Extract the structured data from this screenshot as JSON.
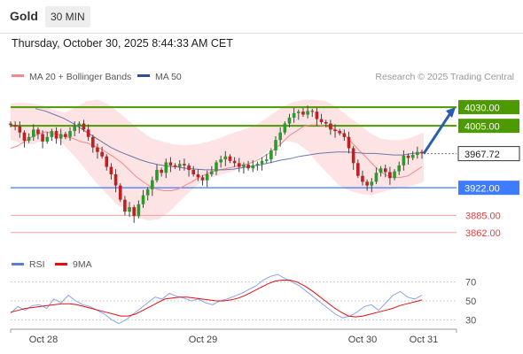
{
  "header": {
    "title": "Gold",
    "timeframe": "30 MIN"
  },
  "timestamp": "Thursday, October 30, 2025 8:44:33 AM CET",
  "legend": {
    "ma20": {
      "label": "MA 20 + Bollinger Bands",
      "color": "#f08a8a"
    },
    "ma50": {
      "label": "MA 50",
      "color": "#2f4f8f"
    },
    "credit": "Research © 2025 Trading Central"
  },
  "rsi_legend": {
    "rsi": {
      "label": "RSI",
      "color": "#5b7fd6"
    },
    "ma9": {
      "label": "9MA",
      "color": "#e01010"
    }
  },
  "chart_data": [
    {
      "type": "candlestick",
      "title": "Gold",
      "ylim": [
        3838,
        4055
      ],
      "x_ticks": [
        "Oct 28",
        "Oct 29",
        "Oct 30",
        "Oct 31"
      ],
      "price_levels": [
        {
          "value": 4030.0,
          "label": "4030.00",
          "kind": "resistance",
          "color": "#4c9a00"
        },
        {
          "value": 4005.0,
          "label": "4005.00",
          "kind": "resistance",
          "color": "#4c9a00"
        },
        {
          "value": 3967.72,
          "label": "3967.72",
          "kind": "current",
          "color": "#333333"
        },
        {
          "value": 3922.0,
          "label": "3922.00",
          "kind": "pivot",
          "color": "#3d7bff"
        },
        {
          "value": 3885.0,
          "label": "3885.00",
          "kind": "support",
          "color": "#f2a0a0"
        },
        {
          "value": 3862.0,
          "label": "3862.00",
          "kind": "support",
          "color": "#f2a0a0"
        }
      ],
      "candles_close": [
        4006,
        4004,
        3996,
        3985,
        3990,
        4000,
        3994,
        3984,
        3990,
        3998,
        3988,
        3994,
        3990,
        3998,
        4004,
        4008,
        4000,
        3990,
        3976,
        3970,
        3964,
        3950,
        3940,
        3925,
        3906,
        3890,
        3896,
        3884,
        3900,
        3912,
        3920,
        3932,
        3946,
        3942,
        3956,
        3952,
        3950,
        3954,
        3952,
        3946,
        3940,
        3936,
        3932,
        3940,
        3944,
        3956,
        3960,
        3964,
        3958,
        3955,
        3950,
        3953,
        3948,
        3952,
        3954,
        3958,
        3960,
        3972,
        3986,
        3996,
        4008,
        4016,
        4022,
        4024,
        4020,
        4025,
        4024,
        4014,
        4010,
        4008,
        4000,
        3998,
        3995,
        3990,
        3975,
        3955,
        3938,
        3930,
        3925,
        3930,
        3942,
        3948,
        3943,
        3935,
        3944,
        3952,
        3965,
        3962,
        3966,
        3970,
        3968
      ],
      "ma20": [
        3975,
        3978,
        3984,
        3990,
        3994,
        3997,
        3995,
        3993,
        3990,
        3988,
        3984,
        3982,
        3978,
        3974,
        3968,
        3962,
        3955,
        3946,
        3937,
        3930,
        3924,
        3920,
        3918,
        3918,
        3920,
        3925,
        3930,
        3936,
        3940,
        3944,
        3946,
        3948,
        3950,
        3952,
        3954,
        3957,
        3962,
        3968,
        3975,
        3983,
        3992,
        3998,
        4004,
        4006,
        4006,
        4005,
        4002,
        3998,
        3992,
        3982,
        3972,
        3963,
        3953,
        3944,
        3938,
        3936,
        3936,
        3938,
        3944,
        3950
      ],
      "ma50": [
        4028,
        4025,
        4020,
        4015,
        4008,
        4000,
        3992,
        3984,
        3976,
        3970,
        3965,
        3960,
        3956,
        3953,
        3951,
        3950,
        3948,
        3947,
        3946,
        3946,
        3946,
        3947,
        3949,
        3951,
        3953,
        3956,
        3959,
        3961,
        3964,
        3966,
        3968,
        3969,
        3970,
        3970,
        3969,
        3968,
        3968,
        3967,
        3966,
        3966,
        3968,
        3969
      ],
      "bollinger_upper": [
        4035,
        4036,
        4035,
        4032,
        4026,
        4023,
        4030,
        4038,
        4040,
        4034,
        4022,
        4010,
        3998,
        3988,
        3984,
        3980,
        3979,
        3980,
        3983,
        3987,
        3993,
        3998,
        4003,
        4010,
        4020,
        4030,
        4037,
        4040,
        4040,
        4038,
        4030,
        4018,
        4008,
        3996,
        3988,
        3986,
        3986,
        3990,
        3996
      ],
      "bollinger_lower": [
        3986,
        3982,
        3980,
        3985,
        3990,
        3980,
        3965,
        3948,
        3930,
        3915,
        3900,
        3892,
        3882,
        3878,
        3880,
        3890,
        3904,
        3918,
        3930,
        3936,
        3940,
        3944,
        3950,
        3958,
        3968,
        3978,
        3985,
        3982,
        3972,
        3955,
        3940,
        3925,
        3918,
        3914,
        3912,
        3916,
        3920,
        3922,
        3925,
        3930
      ]
    },
    {
      "type": "line",
      "title": "RSI",
      "ylim": [
        20,
        80
      ],
      "y_ticks": [
        70,
        50,
        30
      ],
      "series": [
        {
          "name": "RSI",
          "values": [
            37,
            44,
            40,
            45,
            46,
            42,
            52,
            48,
            56,
            50,
            46,
            44,
            40,
            36,
            30,
            26,
            30,
            36,
            42,
            48,
            54,
            52,
            58,
            55,
            53,
            50,
            52,
            48,
            46,
            50,
            52,
            55,
            58,
            62,
            66,
            72,
            76,
            78,
            74,
            70,
            66,
            60,
            54,
            48,
            42,
            36,
            32,
            34,
            38,
            44,
            46,
            40,
            48,
            56,
            60,
            54,
            52,
            56
          ]
        },
        {
          "name": "9MA",
          "values": [
            38,
            40,
            42,
            43,
            44,
            45,
            46,
            47,
            47,
            46,
            44,
            42,
            40,
            38,
            36,
            34,
            34,
            36,
            40,
            44,
            48,
            52,
            53,
            54,
            54,
            53,
            52,
            51,
            50,
            50,
            51,
            53,
            56,
            60,
            64,
            68,
            71,
            72,
            72,
            70,
            66,
            61,
            55,
            49,
            43,
            38,
            34,
            33,
            34,
            36,
            38,
            40,
            42,
            45,
            47,
            49,
            51
          ]
        }
      ]
    }
  ]
}
